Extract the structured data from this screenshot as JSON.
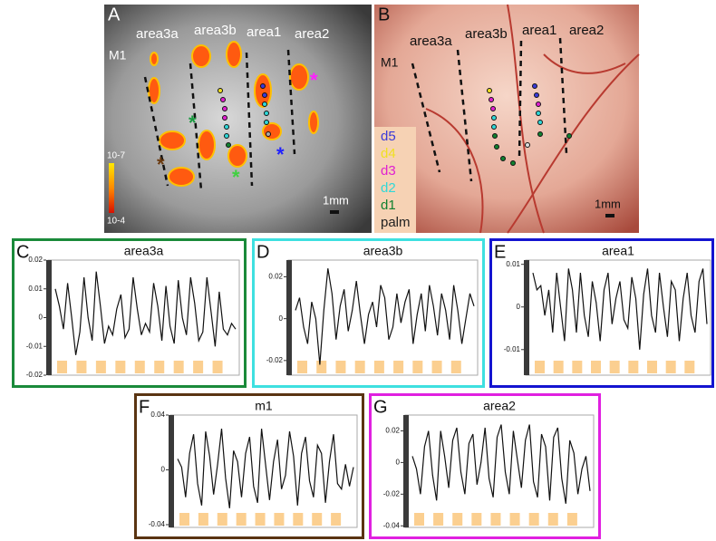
{
  "image_panels": [
    {
      "panel": "A",
      "areas": [
        "area3a",
        "area3b",
        "area1",
        "area2"
      ],
      "m1": "M1",
      "scale_bar": "1mm",
      "colorbar": [
        "10-7",
        "10-4"
      ],
      "asterisks": [
        {
          "text": "*",
          "color": "#1a9a40"
        },
        {
          "text": "*",
          "color": "#40d040"
        },
        {
          "text": "*",
          "color": "#2020ff"
        },
        {
          "text": "*",
          "color": "#ff20ff"
        },
        {
          "text": "*",
          "color": "#6a3a10"
        }
      ]
    },
    {
      "panel": "B",
      "areas": [
        "area3a",
        "area3b",
        "area1",
        "area2"
      ],
      "m1": "M1",
      "scale_bar": "1mm",
      "legend": [
        {
          "label": "d5",
          "color": "#3a3ad8"
        },
        {
          "label": "d4",
          "color": "#f0e020"
        },
        {
          "label": "d3",
          "color": "#e020d0"
        },
        {
          "label": "d2",
          "color": "#30d8d8"
        },
        {
          "label": "d1",
          "color": "#108030"
        },
        {
          "label": "palm",
          "color": "#222222"
        }
      ]
    }
  ],
  "chart_data": [
    {
      "type": "line",
      "panel": "C",
      "title": "area3a",
      "frame_color": "#1a8a3a",
      "color": "#111111",
      "ylim": [
        -0.02,
        0.02
      ],
      "yticks": [
        0.02,
        0.01,
        0,
        -0.01,
        -0.02
      ],
      "values": [
        0.01,
        0.004,
        -0.004,
        0.012,
        0.0,
        -0.013,
        -0.005,
        0.014,
        0.0,
        -0.008,
        0.016,
        0.004,
        -0.009,
        -0.003,
        -0.006,
        0.003,
        0.008,
        -0.007,
        -0.004,
        0.014,
        0.003,
        -0.006,
        -0.002,
        -0.005,
        0.012,
        0.004,
        -0.008,
        0.011,
        -0.003,
        -0.009,
        0.013,
        0.0,
        -0.006,
        0.014,
        0.005,
        -0.008,
        -0.005,
        0.014,
        0.002,
        -0.01,
        0.009,
        -0.004,
        -0.006,
        -0.002,
        -0.004
      ]
    },
    {
      "type": "line",
      "panel": "D",
      "title": "area3b",
      "frame_color": "#3ee0e0",
      "color": "#111111",
      "ylim": [
        -0.027,
        0.028
      ],
      "yticks": [
        0.02,
        0,
        -0.02
      ],
      "values": [
        0.004,
        0.01,
        -0.004,
        -0.012,
        0.008,
        0.0,
        -0.022,
        0.004,
        0.024,
        0.012,
        -0.01,
        0.006,
        0.014,
        -0.006,
        0.004,
        0.018,
        0.002,
        -0.012,
        0.002,
        0.008,
        -0.004,
        0.016,
        0.01,
        -0.01,
        -0.004,
        0.012,
        -0.002,
        0.008,
        0.014,
        -0.012,
        0.002,
        0.012,
        -0.006,
        0.016,
        0.006,
        -0.008,
        0.012,
        0.004,
        -0.01,
        0.016,
        0.004,
        -0.012,
        0.0,
        0.012,
        0.006
      ]
    },
    {
      "type": "line",
      "panel": "E",
      "title": "area1",
      "frame_color": "#1414d0",
      "color": "#111111",
      "ylim": [
        -0.016,
        0.011
      ],
      "yticks": [
        0.01,
        0,
        -0.01
      ],
      "values": [
        0.008,
        0.004,
        0.005,
        -0.002,
        0.004,
        -0.006,
        0.008,
        0.0,
        -0.008,
        0.009,
        0.004,
        -0.006,
        0.008,
        -0.002,
        -0.007,
        0.006,
        0.001,
        -0.008,
        0.004,
        0.008,
        -0.004,
        0.002,
        0.006,
        -0.003,
        -0.005,
        0.007,
        0.002,
        -0.01,
        0.003,
        0.009,
        -0.002,
        -0.006,
        0.008,
        0.0,
        -0.007,
        0.006,
        0.004,
        -0.008,
        0.002,
        0.008,
        -0.002,
        -0.006,
        0.006,
        0.009,
        -0.004
      ]
    },
    {
      "type": "line",
      "panel": "F",
      "title": "m1",
      "frame_color": "#5a3412",
      "color": "#111111",
      "ylim": [
        -0.042,
        0.04
      ],
      "yticks": [
        0.04,
        0,
        -0.04
      ],
      "values": [
        0.008,
        0.002,
        -0.02,
        0.012,
        0.026,
        -0.01,
        -0.026,
        0.028,
        0.01,
        -0.018,
        0.004,
        0.03,
        -0.006,
        -0.028,
        0.014,
        0.006,
        -0.02,
        0.012,
        0.024,
        -0.012,
        -0.024,
        0.03,
        0.004,
        -0.022,
        0.006,
        0.022,
        -0.014,
        -0.004,
        0.028,
        0.01,
        -0.026,
        0.012,
        0.024,
        -0.008,
        -0.02,
        0.018,
        0.012,
        -0.024,
        0.006,
        0.026,
        -0.01,
        -0.014,
        0.004,
        -0.012,
        0.002
      ]
    },
    {
      "type": "line",
      "panel": "G",
      "title": "area2",
      "frame_color": "#e020e0",
      "color": "#111111",
      "ylim": [
        -0.041,
        0.03
      ],
      "yticks": [
        0.02,
        0,
        -0.02,
        -0.04
      ],
      "values": [
        0.004,
        -0.004,
        -0.02,
        0.01,
        0.02,
        -0.008,
        -0.024,
        0.02,
        0.004,
        -0.016,
        0.014,
        0.022,
        -0.006,
        -0.02,
        0.012,
        0.018,
        -0.014,
        0.0,
        0.022,
        -0.01,
        -0.022,
        0.016,
        0.024,
        -0.006,
        -0.02,
        0.02,
        0.002,
        -0.016,
        0.014,
        0.024,
        -0.012,
        -0.022,
        0.018,
        0.01,
        -0.024,
        0.016,
        0.022,
        -0.01,
        -0.026,
        0.014,
        0.006,
        -0.02,
        -0.004,
        0.004,
        -0.018
      ]
    }
  ]
}
